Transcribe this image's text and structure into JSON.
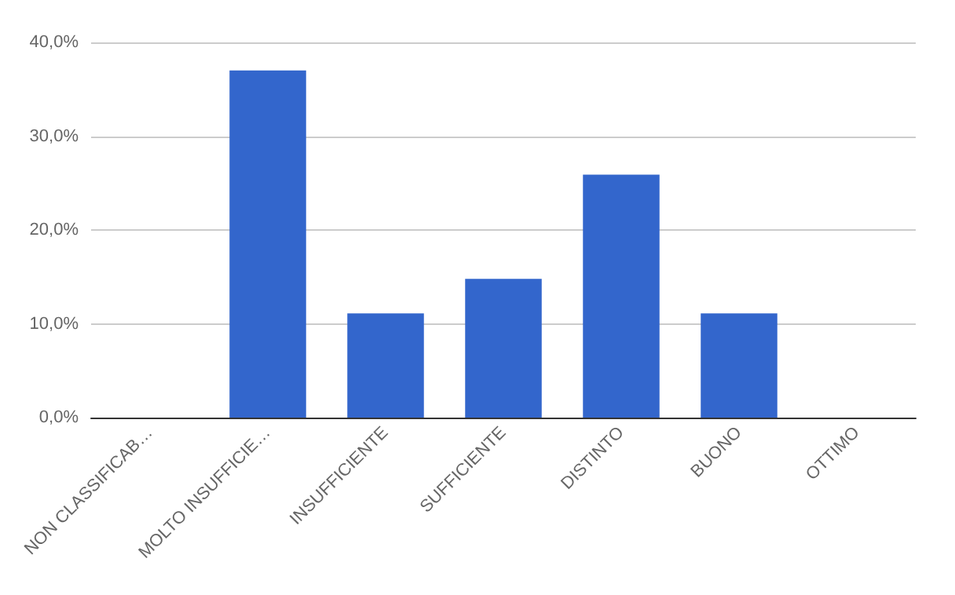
{
  "chart_data": {
    "type": "bar",
    "categories": [
      "NON CLASSIFICAB…",
      "MOLTO INSUFFICIE…",
      "INSUFFICIENTE",
      "SUFFICIENTE",
      "DISTINTO",
      "BUONO",
      "OTTIMO"
    ],
    "values": [
      0,
      37.0,
      11.1,
      14.8,
      25.9,
      11.1,
      0
    ],
    "color": "#3366cc",
    "ylim": [
      0,
      40
    ],
    "yticks": [
      {
        "value": 0,
        "label": "0,0%"
      },
      {
        "value": 10,
        "label": "10,0%"
      },
      {
        "value": 20,
        "label": "20,0%"
      },
      {
        "value": 30,
        "label": "30,0%"
      },
      {
        "value": 40,
        "label": "40,0%"
      }
    ],
    "grid": "y"
  }
}
